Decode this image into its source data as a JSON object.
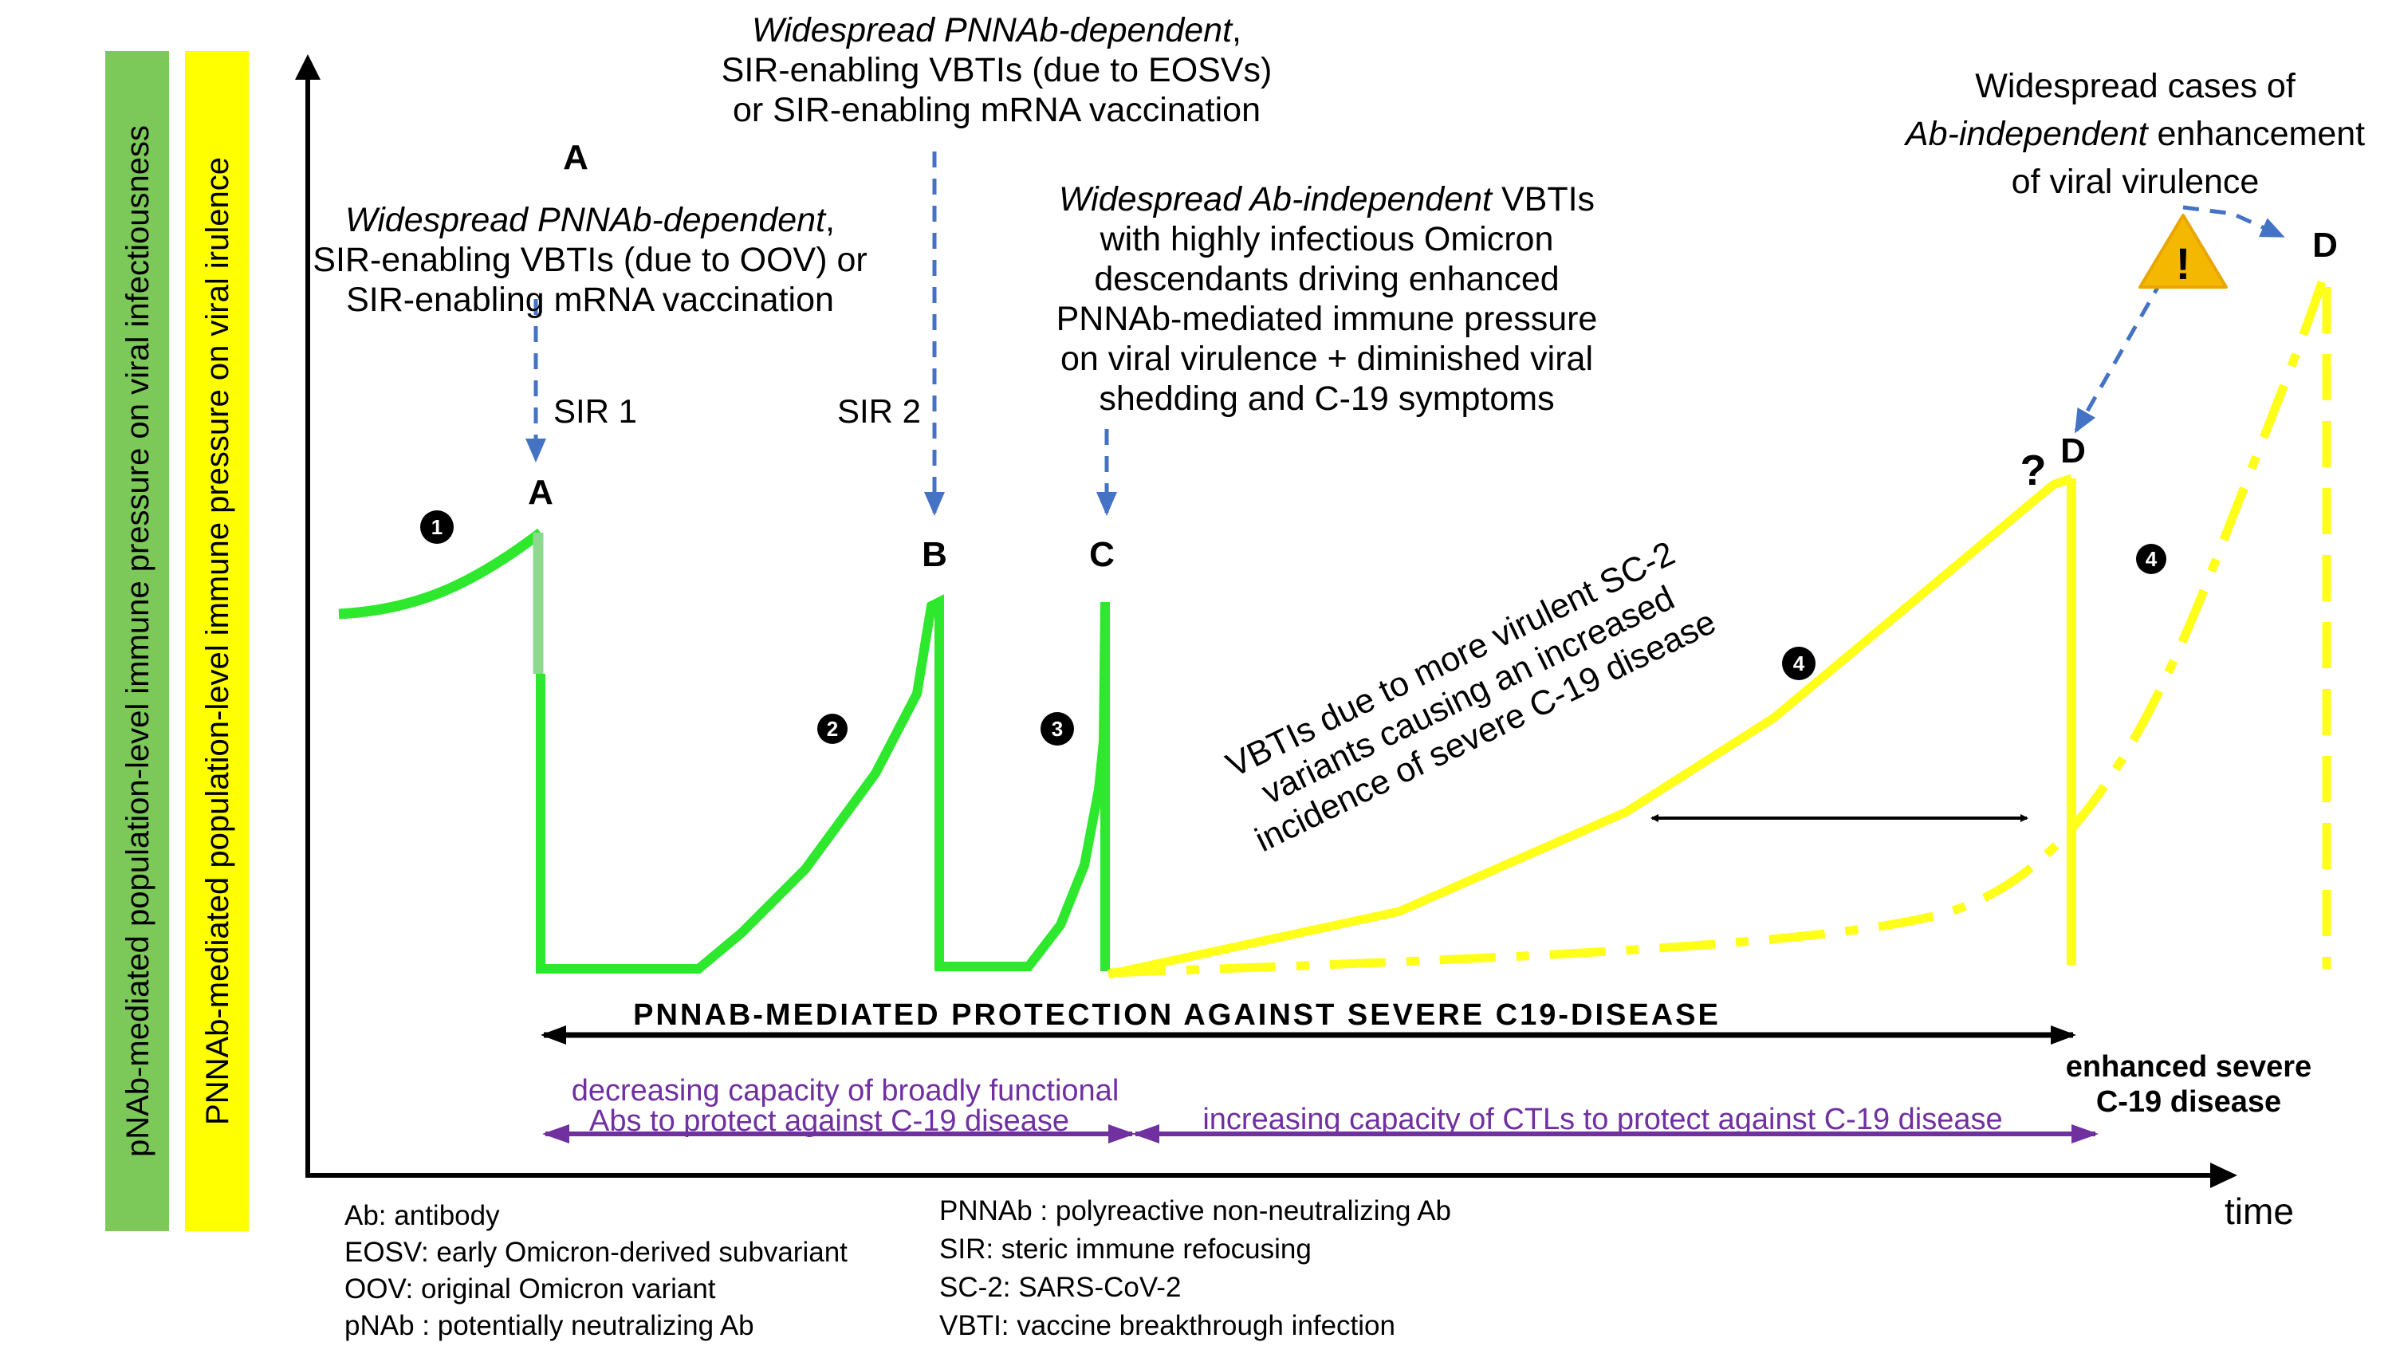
{
  "side_labels": {
    "green": "pNAb-mediated population-level immune pressure on viral infectiousness",
    "yellow": "PNNAb-mediated population-level immune pressure on viral irulence"
  },
  "colors": {
    "green_band": "#7cc95a",
    "yellow_band": "#ffff00",
    "green_curve": "#2ee82e",
    "yellow_curve": "#ffff1a",
    "blue_arrow": "#4472c4",
    "purple": "#7030a0",
    "warning": "#f5b800"
  },
  "annotations": {
    "a_letter": "A",
    "a_note_1_italic": "Widespread PNNAb-dependent",
    "a_note_1_rest": ",",
    "a_note_2": "SIR-enabling VBTIs (due to OOV) or",
    "a_note_3": "SIR-enabling mRNA vaccination",
    "b_note_1_italic": "Widespread PNNAb-dependent",
    "b_note_1_rest": ",",
    "b_note_2": "SIR-enabling VBTIs (due to EOSVs)",
    "b_note_3": "or SIR-enabling mRNA vaccination",
    "c_note_1_italic": "Widespread Ab-independent",
    "c_note_1_rest": " VBTIs",
    "c_note_2": "with highly infectious Omicron",
    "c_note_3": "descendants driving enhanced",
    "c_note_4": "PNNAb-mediated immune pressure",
    "c_note_5": "on viral virulence + diminished viral",
    "c_note_6": "shedding and C-19 symptoms",
    "d_note_1": "Widespread cases of",
    "d_note_2_italic": "Ab-independent",
    "d_note_2_rest": " enhancement",
    "d_note_3": "of viral virulence",
    "sir1": "SIR 1",
    "sir2": "SIR 2",
    "vbti_1": "VBTIs due to more virulent SC-2",
    "vbti_2": "variants causing  an increased",
    "vbti_3": "incidence of severe C-19 disease",
    "warning_glyph": "!",
    "question": "?"
  },
  "points": {
    "a": "A",
    "b": "B",
    "c": "C",
    "d_mid": "D",
    "d_right": "D"
  },
  "phases": {
    "one": "1",
    "two": "2",
    "three": "3",
    "four_a": "4",
    "four_b": "4"
  },
  "protection": {
    "label": "PNNAB-MEDIATED PROTECTION AGAINST SEVERE C19-DISEASE",
    "enhanced_1": "enhanced severe",
    "enhanced_2": "C-19 disease"
  },
  "capacities": {
    "decreasing_1": "decreasing capacity  of broadly functional",
    "decreasing_2": "Abs to protect against C-19 disease",
    "increasing": "increasing capacity of CTLs to protect against C-19 disease"
  },
  "axis": {
    "x_label": "time"
  },
  "legend_left": [
    "Ab: antibody",
    "EOSV: early Omicron-derived subvariant",
    "OOV: original Omicron variant",
    "pNAb : potentially neutralizing Ab"
  ],
  "legend_right": [
    "PNNAb : polyreactive non-neutralizing Ab",
    "SIR: steric immune refocusing",
    "SC-2: SARS-CoV-2",
    "VBTI: vaccine breakthrough infection"
  ]
}
